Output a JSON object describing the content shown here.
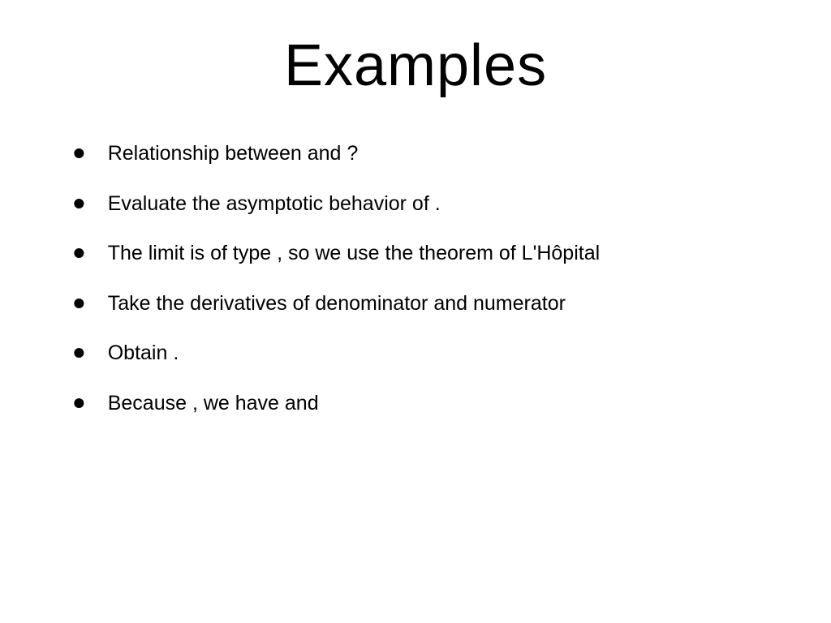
{
  "slide": {
    "title": "Examples",
    "title_fontsize": 72,
    "body_fontsize": 25,
    "bullet_fontsize": 42,
    "background_color": "#ffffff",
    "text_color": "#000000",
    "bullets": [
      {
        "text": "Relationship between   and ?"
      },
      {
        "text": "Evaluate the asymptotic behavior of  ."
      },
      {
        "text": "The limit is of type , so we use the theorem of L'Hôpital"
      },
      {
        "text": "Take the derivatives of denominator and numerator"
      },
      {
        "text": "Obtain ."
      },
      {
        "text": "Because , we have  and"
      }
    ]
  }
}
